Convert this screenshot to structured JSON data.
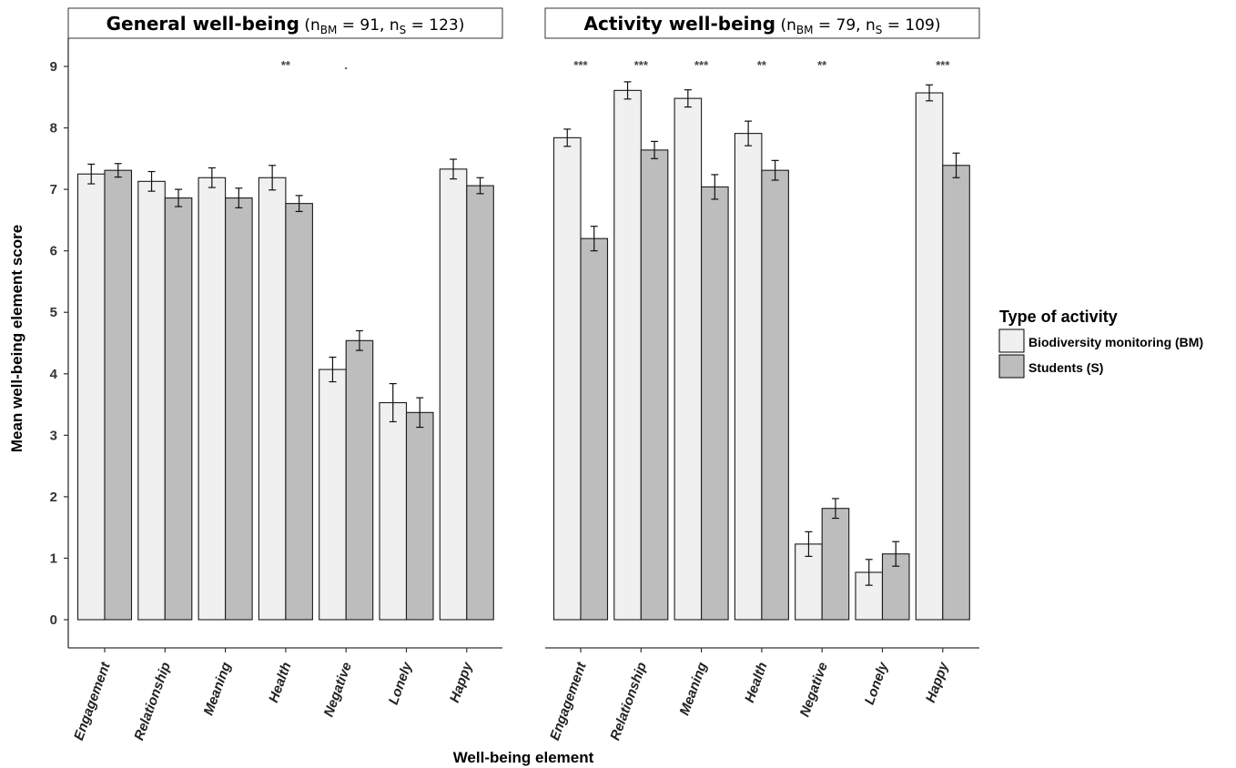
{
  "chart_data": {
    "type": "bar",
    "ylabel": "Mean well-being element score",
    "xlabel": "Well-being element",
    "ylim": [
      0,
      9
    ],
    "yticks": [
      0,
      1,
      2,
      3,
      4,
      5,
      6,
      7,
      8,
      9
    ],
    "categories": [
      "Engagement",
      "Relationship",
      "Meaning",
      "Health",
      "Negative",
      "Lonely",
      "Happy"
    ],
    "legend": {
      "title": "Type of activity",
      "placement": "right",
      "entries": [
        {
          "label": "Biodiversity monitoring (BM)",
          "color": "#f0f0f0"
        },
        {
          "label": "Students (S)",
          "color": "#bdbdbd"
        }
      ]
    },
    "panels": [
      {
        "title_main": "General well-being",
        "title_open": " (n",
        "title_sub1": "BM",
        "title_mid": " = 91, n",
        "title_sub2": "S",
        "title_close": " = 123)",
        "series": [
          {
            "name": "Biodiversity monitoring (BM)",
            "values": [
              7.25,
              7.13,
              7.19,
              7.19,
              4.07,
              3.53,
              7.33
            ],
            "errors": [
              0.16,
              0.16,
              0.16,
              0.2,
              0.2,
              0.31,
              0.16
            ]
          },
          {
            "name": "Students (S)",
            "values": [
              7.31,
              6.86,
              6.86,
              6.77,
              4.54,
              3.37,
              7.06
            ],
            "errors": [
              0.11,
              0.14,
              0.16,
              0.13,
              0.16,
              0.24,
              0.13
            ]
          }
        ],
        "significance": [
          "",
          "",
          "",
          "**",
          ".",
          "",
          ""
        ]
      },
      {
        "title_main": "Activity well-being",
        "title_open": " (n",
        "title_sub1": "BM",
        "title_mid": " = 79, n",
        "title_sub2": "S",
        "title_close": " = 109)",
        "series": [
          {
            "name": "Biodiversity monitoring (BM)",
            "values": [
              7.84,
              8.61,
              8.48,
              7.91,
              1.23,
              0.77,
              8.57
            ],
            "errors": [
              0.14,
              0.14,
              0.14,
              0.2,
              0.2,
              0.21,
              0.13
            ]
          },
          {
            "name": "Students (S)",
            "values": [
              6.2,
              7.64,
              7.04,
              7.31,
              1.81,
              1.07,
              7.39
            ],
            "errors": [
              0.2,
              0.14,
              0.2,
              0.16,
              0.16,
              0.2,
              0.2
            ]
          }
        ],
        "significance": [
          "***",
          "***",
          "***",
          "**",
          "**",
          "",
          "***"
        ]
      }
    ]
  }
}
